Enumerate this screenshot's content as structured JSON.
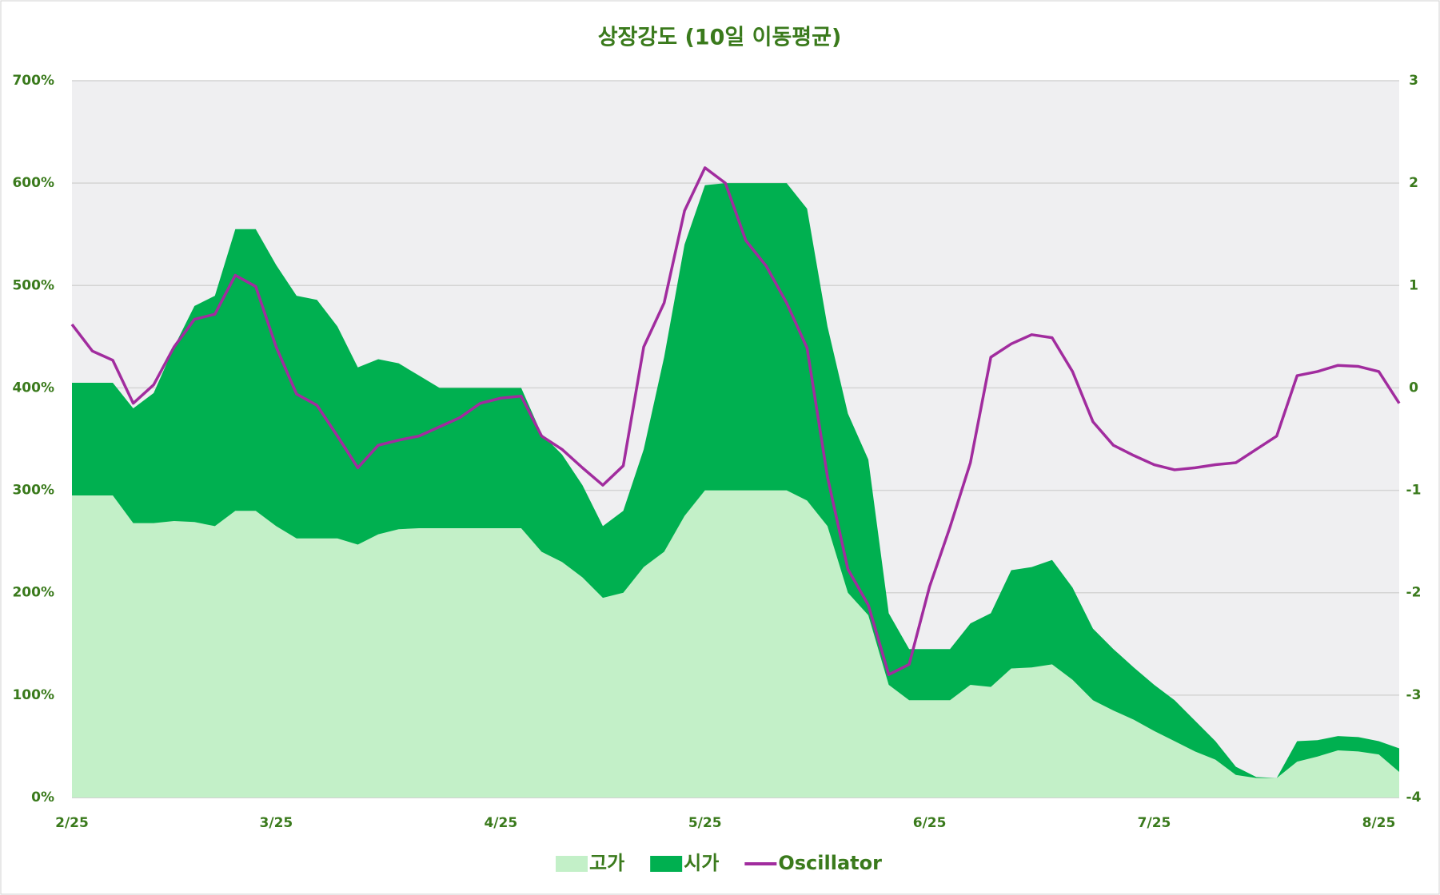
{
  "chart_data": {
    "type": "area-line",
    "title": "상장강도 (10일 이동평균)",
    "categories": [
      "2/25",
      null,
      null,
      null,
      null,
      null,
      null,
      null,
      null,
      null,
      "3/25",
      null,
      null,
      null,
      null,
      null,
      null,
      null,
      null,
      null,
      null,
      "4/25",
      null,
      null,
      null,
      null,
      null,
      null,
      null,
      null,
      null,
      "5/25",
      null,
      null,
      null,
      null,
      null,
      null,
      null,
      null,
      null,
      null,
      "6/25",
      null,
      null,
      null,
      null,
      null,
      null,
      null,
      null,
      null,
      null,
      "7/25",
      null,
      null,
      null,
      null,
      null,
      null,
      null,
      null,
      null,
      null,
      "8/25",
      null
    ],
    "ylim": [
      0,
      700
    ],
    "yticks": [
      {
        "value": 0,
        "label": "0%"
      },
      {
        "value": 100,
        "label": "100%"
      },
      {
        "value": 200,
        "label": "200%"
      },
      {
        "value": 300,
        "label": "300%"
      },
      {
        "value": 400,
        "label": "400%"
      },
      {
        "value": 500,
        "label": "500%"
      },
      {
        "value": 600,
        "label": "600%"
      },
      {
        "value": 700,
        "label": "700%"
      }
    ],
    "y2lim": [
      -4,
      3
    ],
    "y2ticks": [
      -4,
      -3,
      -2,
      -1,
      0,
      1,
      2,
      3
    ],
    "grid": true,
    "legend": "bottom",
    "series": [
      {
        "name": "고가",
        "kind": "area",
        "color": "#c3f0c8",
        "values": [
          295,
          295,
          295,
          268,
          268,
          270,
          269,
          265,
          280,
          280,
          265,
          253,
          253,
          253,
          247,
          257,
          262,
          263,
          263,
          263,
          263,
          263,
          263,
          240,
          230,
          215,
          195,
          200,
          225,
          240,
          275,
          300,
          300,
          300,
          300,
          300,
          290,
          265,
          200,
          178,
          110,
          95,
          95,
          95,
          110,
          108,
          126,
          127,
          130,
          115,
          95,
          85,
          76,
          65,
          55,
          45,
          37,
          22,
          19,
          19,
          35,
          40,
          46,
          45,
          42,
          25
        ]
      },
      {
        "name": "시가",
        "kind": "area",
        "color": "#00b050",
        "values": [
          405,
          405,
          405,
          380,
          395,
          440,
          480,
          490,
          555,
          555,
          520,
          490,
          486,
          460,
          420,
          428,
          424,
          412,
          400,
          400,
          400,
          400,
          400,
          355,
          335,
          305,
          265,
          280,
          340,
          430,
          540,
          598,
          600,
          600,
          600,
          600,
          575,
          460,
          375,
          330,
          180,
          145,
          145,
          145,
          170,
          180,
          222,
          225,
          232,
          205,
          165,
          145,
          127,
          110,
          95,
          75,
          55,
          30,
          20,
          19,
          55,
          56,
          60,
          59,
          55,
          48
        ]
      },
      {
        "name": "Oscillator",
        "kind": "line",
        "color": "#a12c9e",
        "axis": "y2",
        "values": [
          0.62,
          0.36,
          0.27,
          -0.15,
          0.03,
          0.4,
          0.67,
          0.72,
          1.1,
          0.99,
          0.4,
          -0.06,
          -0.17,
          -0.47,
          -0.78,
          -0.56,
          -0.51,
          -0.47,
          -0.38,
          -0.29,
          -0.15,
          -0.1,
          -0.08,
          -0.47,
          -0.6,
          -0.78,
          -0.95,
          -0.76,
          0.4,
          0.83,
          1.73,
          2.15,
          2.0,
          1.44,
          1.19,
          0.83,
          0.39,
          -0.87,
          -1.77,
          -2.12,
          -2.8,
          -2.7,
          -1.94,
          -1.36,
          -0.73,
          0.3,
          0.43,
          0.52,
          0.49,
          0.16,
          -0.33,
          -0.56,
          -0.66,
          -0.75,
          -0.8,
          -0.78,
          -0.75,
          -0.73,
          -0.6,
          -0.47,
          0.12,
          0.16,
          0.22,
          0.21,
          0.16,
          -0.15
        ]
      }
    ]
  }
}
